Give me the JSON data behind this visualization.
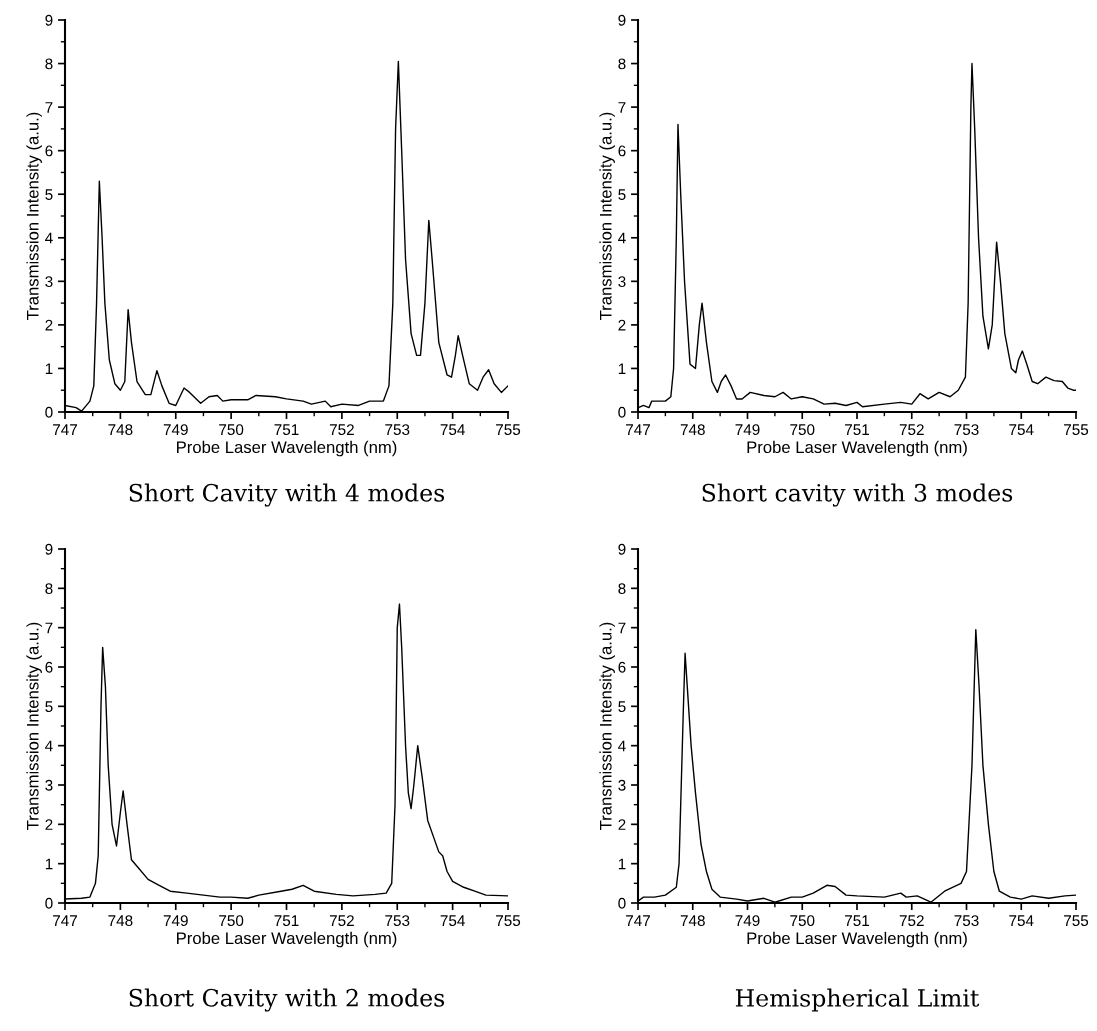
{
  "chart_data": [
    {
      "type": "line",
      "title": "Short Cavity with 4 modes",
      "xlabel": "Probe Laser Wavelength (nm)",
      "ylabel": "Transmission Intensity (a.u.)",
      "xlim": [
        747,
        755
      ],
      "ylim": [
        0,
        9
      ],
      "xticks": [
        747,
        748,
        749,
        750,
        751,
        752,
        753,
        754,
        755
      ],
      "yticks": [
        0,
        1,
        2,
        3,
        4,
        5,
        6,
        7,
        8,
        9
      ],
      "marker": "none",
      "line_style": "solid",
      "series": [
        {
          "color": "#000000",
          "x": [
            747,
            747.2,
            747.3,
            747.45,
            747.52,
            747.57,
            747.62,
            747.67,
            747.72,
            747.8,
            747.9,
            748.0,
            748.08,
            748.14,
            748.2,
            748.3,
            748.45,
            748.55,
            748.66,
            748.75,
            748.88,
            749.0,
            749.15,
            749.25,
            749.45,
            749.6,
            749.75,
            749.85,
            750.0,
            750.3,
            750.45,
            750.8,
            751.0,
            751.3,
            751.45,
            751.7,
            751.8,
            752.0,
            752.3,
            752.5,
            752.75,
            752.85,
            752.92,
            752.97,
            753.02,
            753.08,
            753.15,
            753.25,
            753.35,
            753.42,
            753.5,
            753.57,
            753.63,
            753.75,
            753.9,
            753.98,
            754.05,
            754.1,
            754.18,
            754.3,
            754.45,
            754.55,
            754.65,
            754.75,
            754.88,
            755
          ],
          "values": [
            0.15,
            0.1,
            0.02,
            0.25,
            0.6,
            2.5,
            5.3,
            4.0,
            2.5,
            1.2,
            0.65,
            0.5,
            0.7,
            2.35,
            1.6,
            0.7,
            0.4,
            0.4,
            0.95,
            0.6,
            0.2,
            0.15,
            0.55,
            0.45,
            0.2,
            0.35,
            0.38,
            0.25,
            0.28,
            0.28,
            0.38,
            0.35,
            0.3,
            0.25,
            0.18,
            0.25,
            0.12,
            0.18,
            0.15,
            0.25,
            0.25,
            0.6,
            2.5,
            6.5,
            8.05,
            6.0,
            3.5,
            1.8,
            1.3,
            1.3,
            2.5,
            4.4,
            3.5,
            1.6,
            0.85,
            0.8,
            1.3,
            1.75,
            1.3,
            0.65,
            0.5,
            0.8,
            0.97,
            0.65,
            0.45,
            0.6
          ]
        }
      ]
    },
    {
      "type": "line",
      "title": "Short cavity with 3 modes",
      "xlabel": "Probe Laser Wavelength (nm)",
      "ylabel": "Transmission Intensity (a.u.)",
      "xlim": [
        747,
        755
      ],
      "ylim": [
        0,
        9
      ],
      "xticks": [
        747,
        748,
        749,
        750,
        751,
        752,
        753,
        754,
        755
      ],
      "yticks": [
        0,
        1,
        2,
        3,
        4,
        5,
        6,
        7,
        8,
        9
      ],
      "marker": "none",
      "line_style": "solid",
      "series": [
        {
          "color": "#000000",
          "x": [
            747,
            747.1,
            747.2,
            747.25,
            747.5,
            747.6,
            747.65,
            747.7,
            747.73,
            747.78,
            747.85,
            747.95,
            748.05,
            748.12,
            748.17,
            748.25,
            748.35,
            748.45,
            748.52,
            748.6,
            748.7,
            748.8,
            748.9,
            749.05,
            749.3,
            749.5,
            749.65,
            749.8,
            750.0,
            750.2,
            750.4,
            750.6,
            750.8,
            751.0,
            751.1,
            751.5,
            751.8,
            752.0,
            752.15,
            752.3,
            752.5,
            752.7,
            752.85,
            752.98,
            753.03,
            753.08,
            753.1,
            753.15,
            753.22,
            753.3,
            753.4,
            753.47,
            753.55,
            753.62,
            753.7,
            753.82,
            753.9,
            753.95,
            754.02,
            754.1,
            754.2,
            754.3,
            754.45,
            754.6,
            754.75,
            754.85,
            754.95,
            755
          ],
          "values": [
            0.1,
            0.15,
            0.1,
            0.25,
            0.25,
            0.35,
            1.0,
            4.0,
            6.6,
            5.0,
            3.0,
            1.1,
            1.0,
            2.0,
            2.5,
            1.6,
            0.7,
            0.45,
            0.7,
            0.85,
            0.6,
            0.3,
            0.3,
            0.45,
            0.38,
            0.35,
            0.45,
            0.3,
            0.35,
            0.3,
            0.18,
            0.2,
            0.15,
            0.22,
            0.12,
            0.18,
            0.22,
            0.18,
            0.42,
            0.3,
            0.45,
            0.35,
            0.5,
            0.8,
            2.5,
            7.0,
            8.0,
            6.5,
            4.0,
            2.2,
            1.45,
            2.0,
            3.9,
            3.0,
            1.8,
            1.0,
            0.9,
            1.2,
            1.4,
            1.1,
            0.7,
            0.65,
            0.8,
            0.72,
            0.7,
            0.55,
            0.5,
            0.5
          ]
        }
      ]
    },
    {
      "type": "line",
      "title": "Short Cavity with 2 modes",
      "xlabel": "Probe Laser Wavelength (nm)",
      "ylabel": "Transmission Intensity (a.u.)",
      "xlim": [
        747,
        755
      ],
      "ylim": [
        0,
        9
      ],
      "xticks": [
        747,
        748,
        749,
        750,
        751,
        752,
        753,
        754,
        755
      ],
      "yticks": [
        0,
        1,
        2,
        3,
        4,
        5,
        6,
        7,
        8,
        9
      ],
      "marker": "none",
      "line_style": "solid",
      "series": [
        {
          "color": "#000000",
          "x": [
            747,
            747.3,
            747.45,
            747.55,
            747.6,
            747.65,
            747.68,
            747.73,
            747.78,
            747.85,
            747.93,
            748.0,
            748.05,
            748.12,
            748.2,
            748.35,
            748.5,
            748.7,
            748.9,
            749.2,
            749.5,
            749.8,
            750.0,
            750.3,
            750.5,
            750.9,
            751.1,
            751.3,
            751.5,
            751.9,
            752.2,
            752.6,
            752.8,
            752.9,
            752.96,
            753.0,
            753.04,
            753.08,
            753.15,
            753.2,
            753.25,
            753.3,
            753.37,
            753.45,
            753.55,
            753.65,
            753.75,
            753.82,
            753.9,
            754.0,
            754.2,
            754.4,
            754.6,
            755
          ],
          "values": [
            0.1,
            0.12,
            0.15,
            0.5,
            1.2,
            5.0,
            6.5,
            5.5,
            3.5,
            2.0,
            1.45,
            2.3,
            2.85,
            2.0,
            1.1,
            0.85,
            0.6,
            0.45,
            0.3,
            0.25,
            0.2,
            0.15,
            0.15,
            0.12,
            0.2,
            0.3,
            0.35,
            0.45,
            0.3,
            0.22,
            0.18,
            0.22,
            0.25,
            0.5,
            2.5,
            7.0,
            7.6,
            6.5,
            4.0,
            2.8,
            2.4,
            3.0,
            4.0,
            3.2,
            2.1,
            1.7,
            1.3,
            1.2,
            0.8,
            0.55,
            0.4,
            0.3,
            0.2,
            0.18
          ]
        }
      ]
    },
    {
      "type": "line",
      "title": "Hemispherical Limit",
      "xlabel": "Probe Laser Wavelength (nm)",
      "ylabel": "Transmission Intensity (a.u.)",
      "xlim": [
        747,
        755
      ],
      "ylim": [
        0,
        9
      ],
      "xticks": [
        747,
        748,
        749,
        750,
        751,
        752,
        753,
        754,
        755
      ],
      "yticks": [
        0,
        1,
        2,
        3,
        4,
        5,
        6,
        7,
        8,
        9
      ],
      "marker": "none",
      "line_style": "solid",
      "series": [
        {
          "color": "#000000",
          "x": [
            747,
            747.1,
            747.3,
            747.5,
            747.7,
            747.75,
            747.8,
            747.83,
            747.86,
            747.9,
            747.97,
            748.05,
            748.15,
            748.25,
            748.35,
            748.5,
            748.8,
            749.0,
            749.3,
            749.5,
            749.8,
            750.0,
            750.2,
            750.45,
            750.6,
            750.8,
            751.0,
            751.5,
            751.8,
            751.9,
            752.1,
            752.35,
            752.6,
            752.9,
            753.0,
            753.1,
            753.17,
            753.23,
            753.3,
            753.4,
            753.5,
            753.6,
            753.8,
            754.0,
            754.2,
            754.5,
            754.8,
            755
          ],
          "values": [
            0.05,
            0.15,
            0.15,
            0.2,
            0.4,
            1.0,
            3.5,
            5.0,
            6.35,
            5.5,
            4.0,
            2.8,
            1.5,
            0.8,
            0.35,
            0.15,
            0.1,
            0.05,
            0.12,
            0.02,
            0.15,
            0.15,
            0.25,
            0.45,
            0.42,
            0.2,
            0.18,
            0.15,
            0.25,
            0.15,
            0.18,
            0.02,
            0.3,
            0.5,
            0.8,
            3.5,
            6.95,
            5.5,
            3.5,
            2.0,
            0.8,
            0.3,
            0.15,
            0.1,
            0.18,
            0.12,
            0.18,
            0.2
          ]
        }
      ]
    }
  ]
}
